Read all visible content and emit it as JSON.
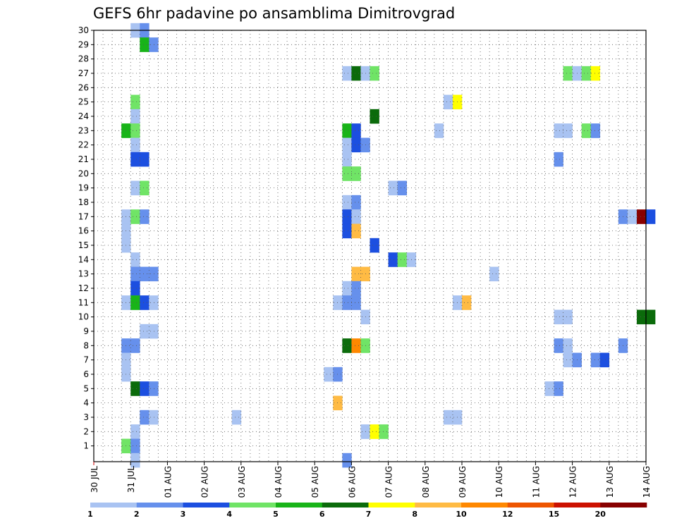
{
  "chart_data": {
    "type": "heatmap",
    "title": "GEFS 6hr padavine po ansamblima Dimitrovgrad",
    "xlabel": "",
    "ylabel": "",
    "x_ticks": [
      "30 JUL",
      "31 JUL",
      "01 AUG",
      "02 AUG",
      "03 AUG",
      "04 AUG",
      "05 AUG",
      "06 AUG",
      "07 AUG",
      "08 AUG",
      "09 AUG",
      "10 AUG",
      "11 AUG",
      "12 AUG",
      "13 AUG",
      "14 AUG"
    ],
    "y_ticks": [
      "1",
      "2",
      "3",
      "4",
      "5",
      "6",
      "7",
      "8",
      "9",
      "10",
      "11",
      "12",
      "13",
      "14",
      "15",
      "16",
      "17",
      "18",
      "19",
      "20",
      "21",
      "22",
      "23",
      "24",
      "25",
      "26",
      "27",
      "28",
      "29",
      "30"
    ],
    "members_range": [
      0,
      30
    ],
    "time_step_hours": 6,
    "grid": true,
    "grid_style": "dotted",
    "colorbar": {
      "position": "bottom",
      "tick_labels": [
        "1",
        "2",
        "3",
        "4",
        "5",
        "6",
        "7",
        "8",
        "10",
        "12",
        "15",
        "20"
      ],
      "colors": [
        "#a9c3f2",
        "#6690ec",
        "#1c4fe0",
        "#70e466",
        "#18b418",
        "#0b6b0b",
        "#ffff00",
        "#ffbb44",
        "#ff8800",
        "#ee5500",
        "#cc1100",
        "#880000"
      ]
    },
    "cells_note": "each cell = [member, time_step_index, color_class]; time_step_index counts 6-hour steps from 30 JUL 00Z; color_class indexes colorbar.colors",
    "cells": [
      [
        30,
        4,
        0
      ],
      [
        30,
        5,
        1
      ],
      [
        29,
        5,
        4
      ],
      [
        29,
        6,
        1
      ],
      [
        27,
        27,
        0
      ],
      [
        27,
        28,
        5
      ],
      [
        27,
        29,
        0
      ],
      [
        27,
        30,
        3
      ],
      [
        27,
        51,
        3
      ],
      [
        27,
        52,
        0
      ],
      [
        27,
        53,
        3
      ],
      [
        27,
        54,
        6
      ],
      [
        25,
        4,
        3
      ],
      [
        25,
        38,
        0
      ],
      [
        25,
        39,
        6
      ],
      [
        24,
        4,
        0
      ],
      [
        24,
        30,
        5
      ],
      [
        23,
        3,
        4
      ],
      [
        23,
        4,
        3
      ],
      [
        23,
        27,
        4
      ],
      [
        23,
        28,
        2
      ],
      [
        23,
        37,
        0
      ],
      [
        23,
        50,
        0
      ],
      [
        23,
        51,
        0
      ],
      [
        23,
        53,
        3
      ],
      [
        23,
        54,
        1
      ],
      [
        22,
        4,
        0
      ],
      [
        22,
        27,
        0
      ],
      [
        22,
        28,
        2
      ],
      [
        22,
        29,
        1
      ],
      [
        21,
        4,
        2
      ],
      [
        21,
        5,
        2
      ],
      [
        21,
        27,
        0
      ],
      [
        21,
        50,
        1
      ],
      [
        20,
        27,
        3
      ],
      [
        20,
        28,
        3
      ],
      [
        19,
        4,
        0
      ],
      [
        19,
        5,
        3
      ],
      [
        19,
        32,
        0
      ],
      [
        19,
        33,
        1
      ],
      [
        18,
        27,
        0
      ],
      [
        18,
        28,
        1
      ],
      [
        17,
        3,
        0
      ],
      [
        17,
        4,
        3
      ],
      [
        17,
        5,
        1
      ],
      [
        17,
        27,
        2
      ],
      [
        17,
        28,
        0
      ],
      [
        17,
        57,
        1
      ],
      [
        17,
        58,
        0
      ],
      [
        17,
        59,
        11
      ],
      [
        17,
        60,
        2
      ],
      [
        16,
        3,
        0
      ],
      [
        16,
        27,
        2
      ],
      [
        16,
        28,
        7
      ],
      [
        15,
        3,
        0
      ],
      [
        15,
        30,
        2
      ],
      [
        14,
        4,
        0
      ],
      [
        14,
        32,
        2
      ],
      [
        14,
        33,
        3
      ],
      [
        14,
        34,
        0
      ],
      [
        13,
        4,
        1
      ],
      [
        13,
        5,
        1
      ],
      [
        13,
        6,
        1
      ],
      [
        13,
        28,
        7
      ],
      [
        13,
        29,
        7
      ],
      [
        13,
        43,
        0
      ],
      [
        12,
        4,
        2
      ],
      [
        12,
        27,
        0
      ],
      [
        12,
        28,
        1
      ],
      [
        11,
        3,
        0
      ],
      [
        11,
        4,
        4
      ],
      [
        11,
        5,
        2
      ],
      [
        11,
        6,
        0
      ],
      [
        11,
        26,
        0
      ],
      [
        11,
        27,
        1
      ],
      [
        11,
        28,
        1
      ],
      [
        11,
        39,
        0
      ],
      [
        11,
        40,
        7
      ],
      [
        10,
        29,
        0
      ],
      [
        10,
        50,
        0
      ],
      [
        10,
        51,
        0
      ],
      [
        10,
        59,
        5
      ],
      [
        10,
        60,
        5
      ],
      [
        9,
        5,
        0
      ],
      [
        9,
        6,
        0
      ],
      [
        8,
        3,
        1
      ],
      [
        8,
        4,
        1
      ],
      [
        8,
        27,
        5
      ],
      [
        8,
        28,
        8
      ],
      [
        8,
        29,
        3
      ],
      [
        8,
        50,
        1
      ],
      [
        8,
        51,
        0
      ],
      [
        8,
        57,
        1
      ],
      [
        7,
        3,
        0
      ],
      [
        7,
        51,
        0
      ],
      [
        7,
        52,
        1
      ],
      [
        7,
        54,
        1
      ],
      [
        7,
        55,
        2
      ],
      [
        6,
        3,
        0
      ],
      [
        6,
        25,
        0
      ],
      [
        6,
        26,
        1
      ],
      [
        5,
        4,
        5
      ],
      [
        5,
        5,
        2
      ],
      [
        5,
        6,
        1
      ],
      [
        5,
        49,
        0
      ],
      [
        5,
        50,
        1
      ],
      [
        4,
        26,
        7
      ],
      [
        3,
        5,
        1
      ],
      [
        3,
        6,
        0
      ],
      [
        3,
        15,
        0
      ],
      [
        3,
        38,
        0
      ],
      [
        3,
        39,
        0
      ],
      [
        2,
        4,
        0
      ],
      [
        2,
        29,
        0
      ],
      [
        2,
        30,
        6
      ],
      [
        2,
        31,
        3
      ],
      [
        1,
        3,
        3
      ],
      [
        1,
        4,
        1
      ],
      [
        0,
        4,
        0
      ],
      [
        0,
        27,
        1
      ]
    ]
  }
}
